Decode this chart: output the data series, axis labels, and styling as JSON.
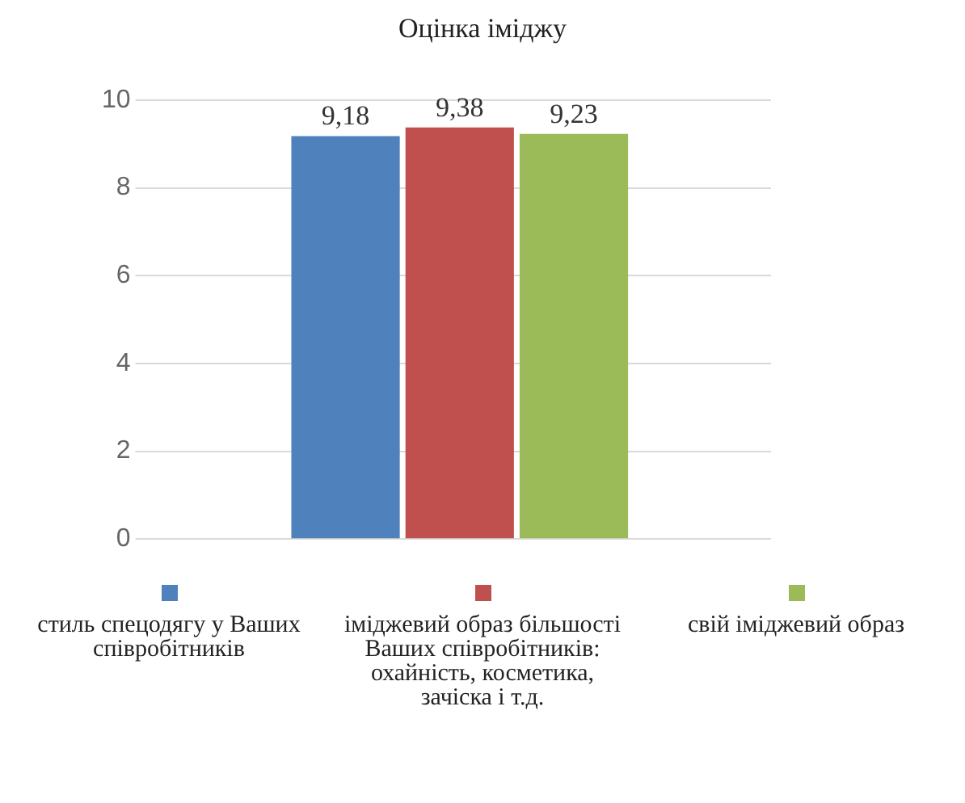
{
  "chart_data": {
    "type": "bar",
    "title": "Оцінка іміджу",
    "categories": [
      null
    ],
    "series": [
      {
        "name": "стиль спецодягу у Ваших співробітників",
        "color": "#4f81bd",
        "values": [
          9.18
        ],
        "value_labels": [
          "9,18"
        ]
      },
      {
        "name": "іміджевий образ більшості Ваших співробітників: охайність, косметика, зачіска і т.д.",
        "color": "#c0504d",
        "values": [
          9.38
        ],
        "value_labels": [
          "9,38"
        ]
      },
      {
        "name": "свій іміджевий образ",
        "color": "#9bbb59",
        "values": [
          9.23
        ],
        "value_labels": [
          "9,23"
        ]
      }
    ],
    "ylim": [
      0,
      10
    ],
    "yticks": [
      0,
      2,
      4,
      6,
      8,
      10
    ],
    "grid": "y",
    "legend": "bottom"
  }
}
